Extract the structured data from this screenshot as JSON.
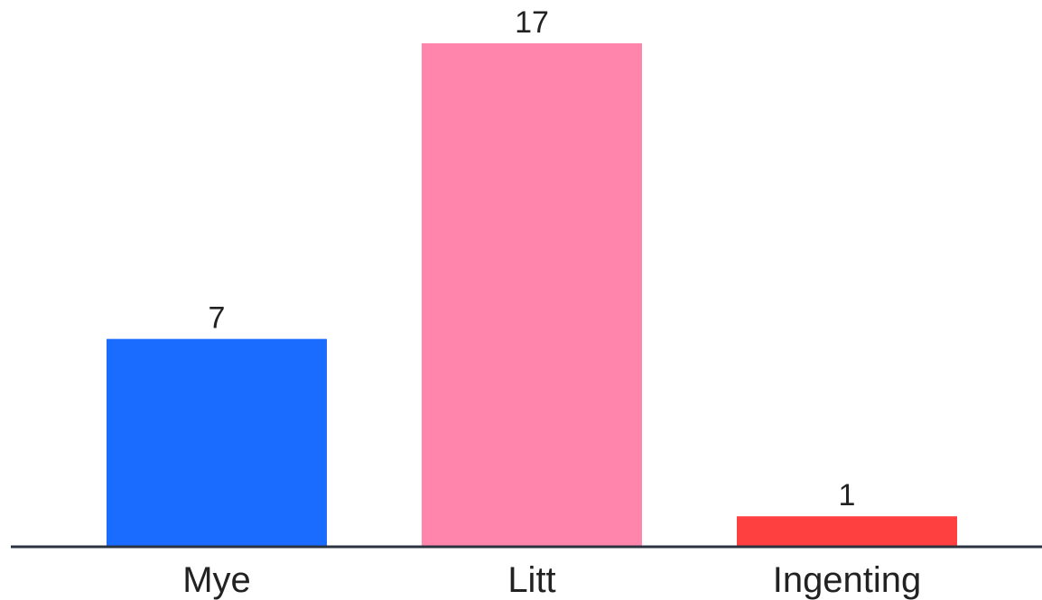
{
  "chart_data": {
    "type": "bar",
    "title": "",
    "xlabel": "",
    "ylabel": "",
    "categories": [
      "Mye",
      "Litt",
      "Ingenting"
    ],
    "values": [
      7,
      17,
      1
    ],
    "colors": [
      "#1a6bff",
      "#ff85ad",
      "#ff4040"
    ],
    "value_labels": [
      "7",
      "17",
      "1"
    ],
    "ylim": [
      0,
      17
    ],
    "grid": false,
    "legend": "none",
    "axis_color": "#2b3340"
  }
}
